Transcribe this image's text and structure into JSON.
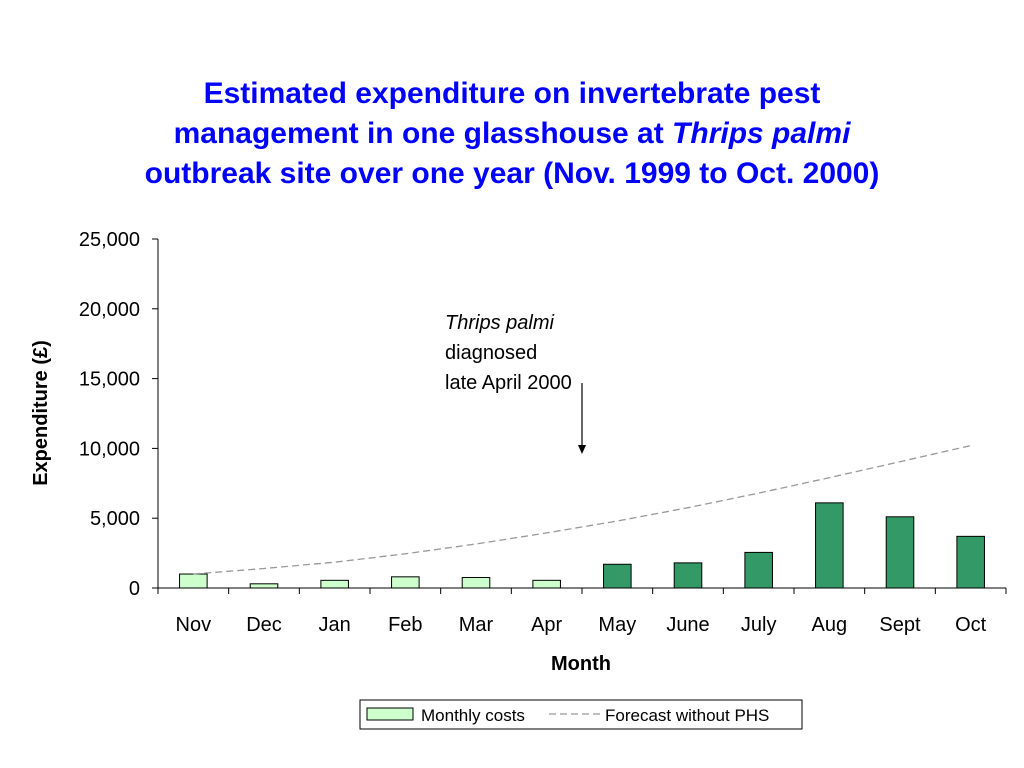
{
  "chart_data": {
    "type": "bar",
    "title": {
      "line1": "Estimated expenditure on invertebrate pest",
      "line2_prefix": "management in one glasshouse at ",
      "line2_italic": "Thrips palmi",
      "line3": "outbreak site over one year (Nov. 1999 to Oct. 2000)"
    },
    "xlabel": "Month",
    "ylabel": "Expenditure  (£)",
    "ylim": [
      0,
      25000
    ],
    "yticks": [
      0,
      5000,
      10000,
      15000,
      20000,
      25000
    ],
    "ytick_labels": [
      "0",
      "5,000",
      "10,000",
      "15,000",
      "20,000",
      "25,000"
    ],
    "categories": [
      "Nov",
      "Dec",
      "Jan",
      "Feb",
      "Mar",
      "Apr",
      "May",
      "June",
      "July",
      "Aug",
      "Sept",
      "Oct"
    ],
    "series": [
      {
        "name": "Monthly costs",
        "kind": "bar",
        "values": [
          1000,
          300,
          550,
          800,
          750,
          550,
          1700,
          1800,
          2550,
          6100,
          5100,
          3700
        ],
        "colors_by_phase": {
          "pre_diagnosis": "#ccffcc",
          "post_diagnosis": "#339966"
        },
        "post_diagnosis_from_index": 6
      },
      {
        "name": "Forecast without PHS",
        "kind": "line",
        "style": "dashed",
        "color": "#999999",
        "values": [
          1000,
          1400,
          1850,
          2450,
          3150,
          3950,
          4800,
          5750,
          6800,
          7900,
          9050,
          10200
        ]
      }
    ],
    "annotation": {
      "italic_line": "Thrips palmi",
      "line2": "diagnosed",
      "line3": "late April 2000",
      "arrow_points_at_value": 9600
    },
    "legend": {
      "position": "bottom-center",
      "border": true
    },
    "grid": false
  }
}
